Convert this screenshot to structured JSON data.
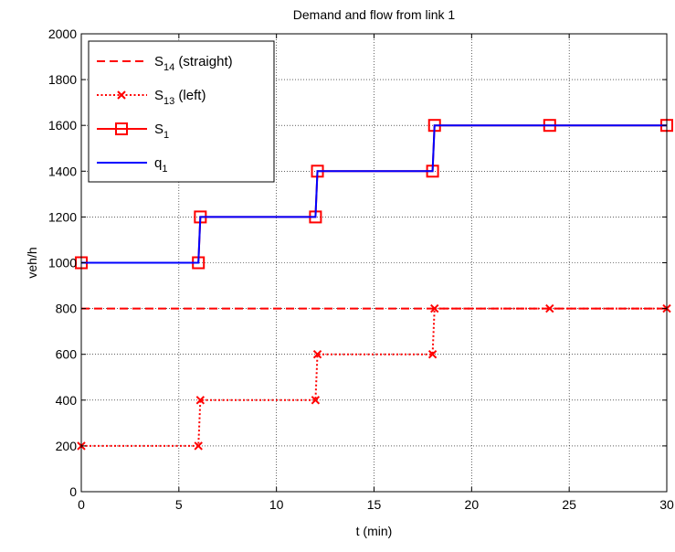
{
  "chart_data": {
    "type": "line",
    "title": "Demand and flow from link 1",
    "xlabel": "t (min)",
    "ylabel": "veh/h",
    "xlim": [
      0,
      30
    ],
    "ylim": [
      0,
      2000
    ],
    "xticks": [
      0,
      5,
      10,
      15,
      20,
      25,
      30
    ],
    "yticks": [
      0,
      200,
      400,
      600,
      800,
      1000,
      1200,
      1400,
      1600,
      1800,
      2000
    ],
    "grid": true,
    "legend_position": "top-left",
    "series": [
      {
        "name": "S",
        "name_sub": "14",
        "name_suffix": " (straight)",
        "color": "#ff0000",
        "line_style": "dashed",
        "marker": "none",
        "x": [
          0,
          30
        ],
        "y": [
          800,
          800
        ]
      },
      {
        "name": "S",
        "name_sub": "13",
        "name_suffix": " (left)",
        "color": "#ff0000",
        "line_style": "dotted",
        "marker": "x",
        "x": [
          0,
          6,
          6.1,
          12,
          12.1,
          18,
          18.1,
          24,
          30
        ],
        "y": [
          200,
          200,
          400,
          400,
          600,
          600,
          800,
          800,
          800
        ]
      },
      {
        "name": "S",
        "name_sub": "1",
        "name_suffix": "",
        "color": "#ff0000",
        "line_style": "solid",
        "marker": "square",
        "x": [
          0,
          6,
          6.1,
          12,
          12.1,
          18,
          18.1,
          24,
          30
        ],
        "y": [
          1000,
          1000,
          1200,
          1200,
          1400,
          1400,
          1600,
          1600,
          1600
        ]
      },
      {
        "name": "q",
        "name_sub": "1",
        "name_suffix": "",
        "color": "#0000ff",
        "line_style": "solid",
        "marker": "none",
        "x": [
          0,
          6,
          6.1,
          12,
          12.1,
          18,
          18.1,
          24,
          30
        ],
        "y": [
          1000,
          1000,
          1200,
          1200,
          1400,
          1400,
          1600,
          1600,
          1600
        ]
      }
    ]
  }
}
